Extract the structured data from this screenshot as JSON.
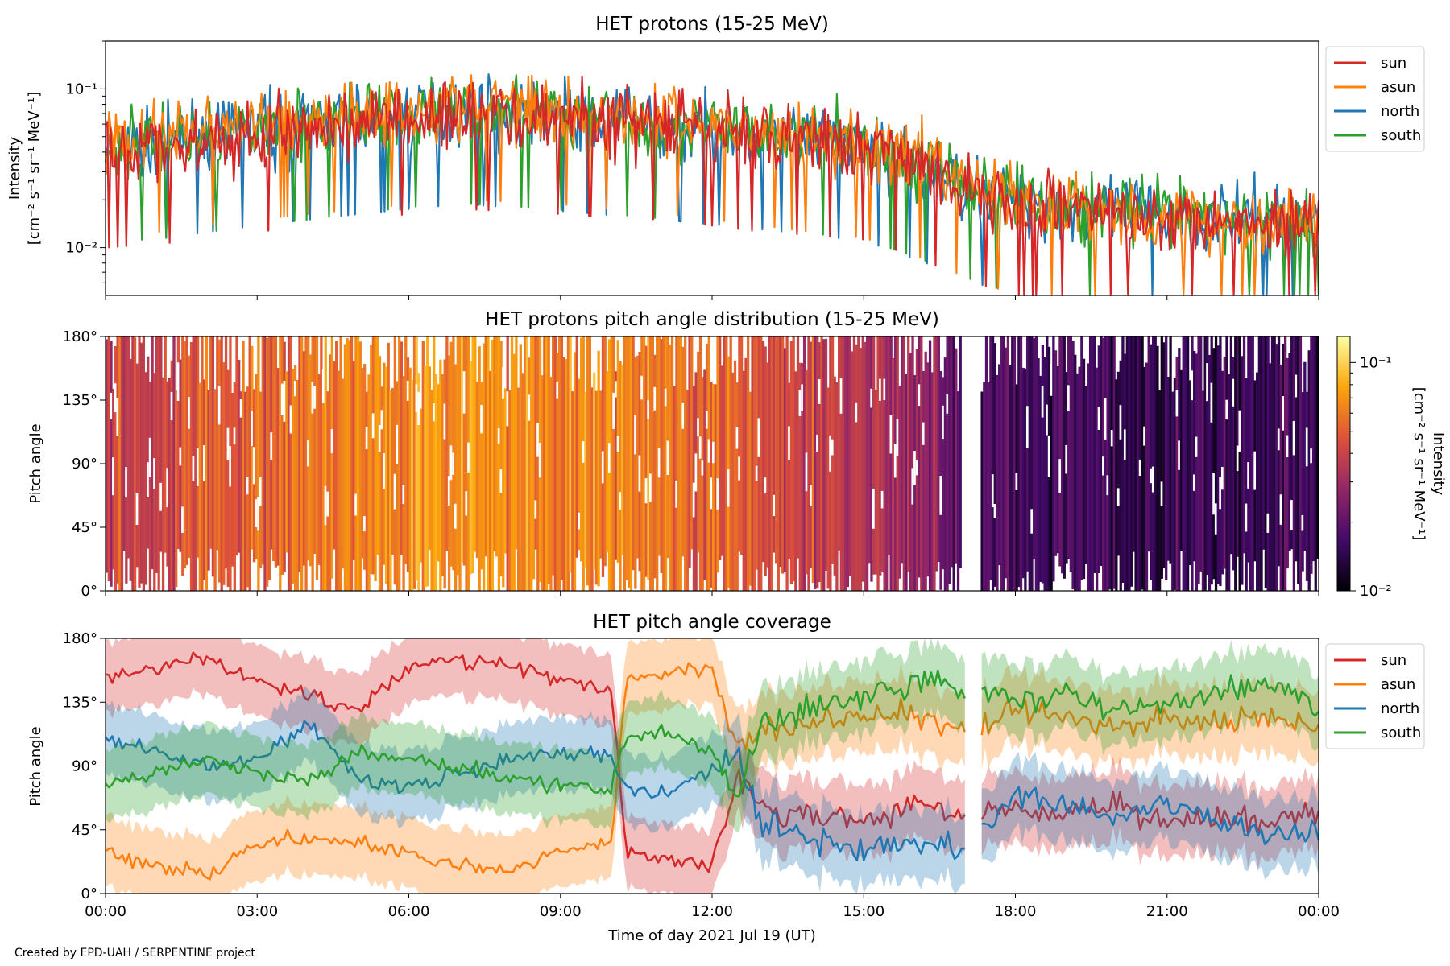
{
  "footer": "Created by EPD-UAH / SERPENTINE project",
  "colors": {
    "sun": "#d62728",
    "asun": "#ff7f0e",
    "north": "#1f77b4",
    "south": "#2ca02c",
    "frame": "#000000"
  },
  "chart_data": [
    {
      "id": "intensity",
      "type": "line",
      "title": "HET protons (15-25 MeV)",
      "ylabel_line1": "Intensity",
      "ylabel_line2": "[cm⁻² s⁻¹ sr⁻¹ MeV⁻¹]",
      "yscale": "log",
      "ylim": [
        0.005,
        0.2
      ],
      "yticks": [
        {
          "value": 0.1,
          "label": "10⁻¹"
        },
        {
          "value": 0.01,
          "label": "10⁻²"
        }
      ],
      "xlim_hours": [
        0,
        24
      ],
      "legend": [
        "sun",
        "asun",
        "north",
        "south"
      ],
      "legend_position": "outside-right-top",
      "series": [
        {
          "name": "sun",
          "x": [
            0,
            1,
            2,
            3,
            4,
            5,
            6,
            7,
            8,
            9,
            10,
            11,
            12,
            13,
            14,
            15,
            16,
            17,
            18,
            19,
            20,
            21,
            22,
            23,
            24
          ],
          "y": [
            0.04,
            0.042,
            0.045,
            0.05,
            0.055,
            0.06,
            0.065,
            0.07,
            0.068,
            0.065,
            0.062,
            0.06,
            0.055,
            0.05,
            0.048,
            0.045,
            0.035,
            0.025,
            0.02,
            0.018,
            0.017,
            0.016,
            0.015,
            0.015,
            0.015
          ]
        },
        {
          "name": "asun",
          "x": [
            0,
            1,
            2,
            3,
            4,
            5,
            6,
            7,
            8,
            9,
            10,
            11,
            12,
            13,
            14,
            15,
            16,
            17,
            18,
            19,
            20,
            21,
            22,
            23,
            24
          ],
          "y": [
            0.045,
            0.05,
            0.055,
            0.06,
            0.065,
            0.07,
            0.075,
            0.08,
            0.078,
            0.075,
            0.07,
            0.066,
            0.06,
            0.055,
            0.05,
            0.046,
            0.036,
            0.026,
            0.02,
            0.018,
            0.017,
            0.016,
            0.015,
            0.015,
            0.015
          ]
        },
        {
          "name": "north",
          "x": [
            0,
            1,
            2,
            3,
            4,
            5,
            6,
            7,
            8,
            9,
            10,
            11,
            12,
            13,
            14,
            15,
            16,
            17,
            18,
            19,
            20,
            21,
            22,
            23,
            24
          ],
          "y": [
            0.04,
            0.045,
            0.05,
            0.055,
            0.06,
            0.065,
            0.07,
            0.075,
            0.072,
            0.068,
            0.064,
            0.06,
            0.056,
            0.052,
            0.048,
            0.044,
            0.034,
            0.025,
            0.02,
            0.018,
            0.017,
            0.016,
            0.015,
            0.015,
            0.015
          ]
        },
        {
          "name": "south",
          "x": [
            0,
            1,
            2,
            3,
            4,
            5,
            6,
            7,
            8,
            9,
            10,
            11,
            12,
            13,
            14,
            15,
            16,
            17,
            18,
            19,
            20,
            21,
            22,
            23,
            24
          ],
          "y": [
            0.042,
            0.046,
            0.05,
            0.055,
            0.06,
            0.066,
            0.072,
            0.076,
            0.073,
            0.069,
            0.065,
            0.061,
            0.057,
            0.053,
            0.049,
            0.045,
            0.035,
            0.026,
            0.02,
            0.018,
            0.017,
            0.016,
            0.015,
            0.015,
            0.015
          ]
        }
      ]
    },
    {
      "id": "pad",
      "type": "heatmap",
      "title": "HET protons pitch angle distribution (15-25 MeV)",
      "ylabel": "Pitch angle",
      "ylim": [
        0,
        180
      ],
      "yticks": [
        {
          "value": 0,
          "label": "0°"
        },
        {
          "value": 45,
          "label": "45°"
        },
        {
          "value": 90,
          "label": "90°"
        },
        {
          "value": 135,
          "label": "135°"
        },
        {
          "value": 180,
          "label": "180°"
        }
      ],
      "xlim_hours": [
        0,
        24
      ],
      "colorbar": {
        "label": "Intensity",
        "units": "[cm⁻² s⁻¹ sr⁻¹ MeV⁻¹]",
        "scale": "log",
        "range": [
          0.01,
          0.13
        ],
        "ticks": [
          {
            "value": 0.1,
            "label": "10⁻¹"
          },
          {
            "value": 0.01,
            "label": "10⁻²"
          }
        ],
        "colormap": [
          "#000004",
          "#420a68",
          "#932667",
          "#dd513a",
          "#fca50a",
          "#fcffa4"
        ]
      },
      "hourly_intensity": [
        0.04,
        0.042,
        0.045,
        0.05,
        0.055,
        0.062,
        0.068,
        0.072,
        0.07,
        0.066,
        0.062,
        0.058,
        0.052,
        0.045,
        0.04,
        0.036,
        0.028,
        0.02,
        0.017,
        0.016,
        0.015,
        0.015,
        0.015,
        0.015
      ]
    },
    {
      "id": "coverage",
      "type": "line",
      "title": "HET pitch angle coverage",
      "ylabel": "Pitch angle",
      "ylim": [
        0,
        180
      ],
      "yticks": [
        {
          "value": 0,
          "label": "0°"
        },
        {
          "value": 45,
          "label": "45°"
        },
        {
          "value": 90,
          "label": "90°"
        },
        {
          "value": 135,
          "label": "135°"
        },
        {
          "value": 180,
          "label": "180°"
        }
      ],
      "xlim_hours": [
        0,
        24
      ],
      "xticks": [
        "00:00",
        "03:00",
        "06:00",
        "09:00",
        "12:00",
        "15:00",
        "18:00",
        "21:00",
        "00:00"
      ],
      "xlabel": "Time of day 2021 Jul 19 (UT)",
      "legend": [
        "sun",
        "asun",
        "north",
        "south"
      ],
      "legend_position": "outside-right-top",
      "gap_hours": [
        17.0,
        17.3
      ],
      "series": [
        {
          "name": "sun",
          "x": [
            0,
            1,
            2,
            3,
            4,
            5,
            6,
            7,
            8,
            9,
            10,
            10.3,
            11,
            12,
            12.5,
            13,
            14,
            15,
            16,
            17,
            18,
            19,
            20,
            21,
            22,
            23,
            24
          ],
          "y": [
            150,
            160,
            165,
            150,
            140,
            130,
            160,
            165,
            160,
            150,
            145,
            30,
            25,
            20,
            80,
            60,
            55,
            50,
            65,
            55,
            60,
            55,
            60,
            50,
            55,
            50,
            60
          ]
        },
        {
          "name": "asun",
          "x": [
            0,
            1,
            2,
            3,
            4,
            5,
            6,
            7,
            8,
            9,
            10,
            10.3,
            11,
            12,
            12.5,
            13,
            14,
            15,
            16,
            17,
            18,
            19,
            20,
            21,
            22,
            23,
            24
          ],
          "y": [
            30,
            20,
            15,
            35,
            40,
            35,
            30,
            20,
            15,
            30,
            35,
            150,
            155,
            160,
            100,
            115,
            120,
            125,
            125,
            115,
            130,
            125,
            120,
            125,
            120,
            125,
            120
          ]
        },
        {
          "name": "north",
          "x": [
            0,
            1,
            2,
            3,
            4,
            5,
            6,
            7,
            8,
            9,
            10,
            10.3,
            11,
            12,
            12.5,
            13,
            14,
            15,
            16,
            17,
            18,
            19,
            20,
            21,
            22,
            23,
            24
          ],
          "y": [
            110,
            100,
            90,
            95,
            120,
            80,
            75,
            85,
            95,
            100,
            95,
            75,
            70,
            85,
            100,
            50,
            40,
            30,
            35,
            30,
            70,
            60,
            55,
            65,
            50,
            40,
            45
          ]
        },
        {
          "name": "south",
          "x": [
            0,
            1,
            2,
            3,
            4,
            5,
            6,
            7,
            8,
            9,
            10,
            10.3,
            11,
            12,
            12.5,
            13,
            14,
            15,
            16,
            17,
            18,
            19,
            20,
            21,
            22,
            23,
            24
          ],
          "y": [
            75,
            85,
            95,
            85,
            80,
            100,
            95,
            90,
            80,
            75,
            75,
            110,
            115,
            100,
            70,
            120,
            130,
            140,
            150,
            145,
            135,
            140,
            130,
            135,
            140,
            150,
            130
          ]
        }
      ]
    }
  ]
}
